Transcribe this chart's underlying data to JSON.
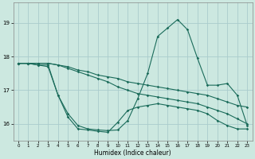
{
  "xlabel": "Humidex (Indice chaleur)",
  "background_color": "#cce8e0",
  "grid_color": "#aacccc",
  "line_color": "#1a6b5a",
  "xlim": [
    -0.5,
    23.5
  ],
  "ylim": [
    15.5,
    19.6
  ],
  "yticks": [
    16,
    17,
    18,
    19
  ],
  "xticks": [
    0,
    1,
    2,
    3,
    4,
    5,
    6,
    7,
    8,
    9,
    10,
    11,
    12,
    13,
    14,
    15,
    16,
    17,
    18,
    19,
    20,
    21,
    22,
    23
  ],
  "s1_x": [
    0,
    1,
    2,
    3,
    4,
    5,
    6,
    7,
    8,
    9,
    10,
    11,
    12,
    13,
    14,
    15,
    16,
    17,
    18,
    19,
    20,
    21,
    22,
    23
  ],
  "s1_y": [
    17.8,
    17.8,
    17.8,
    17.8,
    17.75,
    17.7,
    17.6,
    17.55,
    17.45,
    17.4,
    17.35,
    17.25,
    17.2,
    17.15,
    17.1,
    17.05,
    17.0,
    16.95,
    16.9,
    16.85,
    16.75,
    16.65,
    16.55,
    16.5
  ],
  "s2_x": [
    0,
    1,
    2,
    3,
    4,
    5,
    6,
    7,
    8,
    9,
    10,
    11,
    12,
    13,
    14,
    15,
    16,
    17,
    18,
    19,
    20,
    21,
    22,
    23
  ],
  "s2_y": [
    17.8,
    17.8,
    17.8,
    17.8,
    17.75,
    17.65,
    17.55,
    17.45,
    17.35,
    17.25,
    17.1,
    17.0,
    16.9,
    16.85,
    16.8,
    16.75,
    16.7,
    16.65,
    16.6,
    16.5,
    16.4,
    16.3,
    16.15,
    16.0
  ],
  "s3_x": [
    0,
    1,
    2,
    3,
    4,
    5,
    6,
    7,
    8,
    9,
    10,
    11,
    12,
    13,
    14,
    15,
    16,
    17,
    18,
    19,
    20,
    21,
    22,
    23
  ],
  "s3_y": [
    17.8,
    17.8,
    17.75,
    17.75,
    16.85,
    16.3,
    15.95,
    15.85,
    15.82,
    15.8,
    15.82,
    16.1,
    16.75,
    17.5,
    18.6,
    18.85,
    19.1,
    18.8,
    17.95,
    17.15,
    17.15,
    17.2,
    16.85,
    15.95
  ],
  "s4_x": [
    0,
    1,
    2,
    3,
    4,
    5,
    6,
    7,
    8,
    9,
    10,
    11,
    12,
    13,
    14,
    15,
    16,
    17,
    18,
    19,
    20,
    21,
    22,
    23
  ],
  "s4_y": [
    17.8,
    17.8,
    17.75,
    17.7,
    16.85,
    16.2,
    15.85,
    15.82,
    15.78,
    15.75,
    16.05,
    16.4,
    16.5,
    16.55,
    16.6,
    16.55,
    16.5,
    16.45,
    16.4,
    16.3,
    16.1,
    15.95,
    15.85,
    15.85
  ]
}
